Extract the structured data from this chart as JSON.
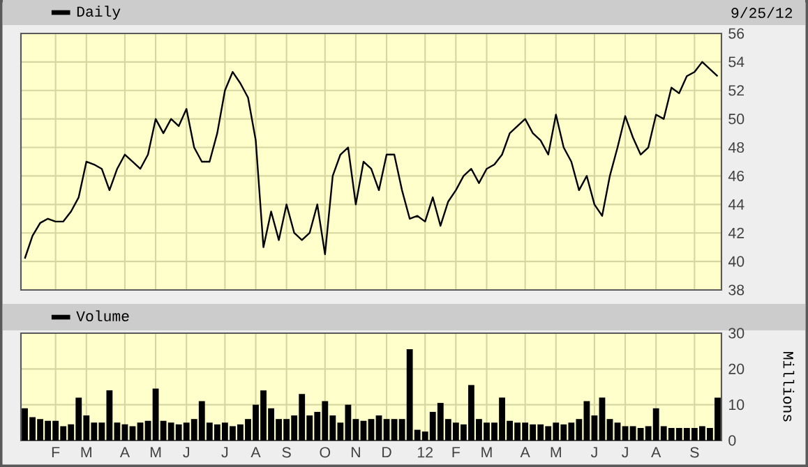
{
  "chart_data": [
    {
      "type": "line",
      "annotations": [
        "9/25/12"
      ],
      "legend": "top left",
      "grid": true,
      "tick_labels": "y",
      "categories": [
        null,
        null,
        null,
        null,
        null,
        null,
        null,
        null,
        null,
        null,
        null,
        null,
        null,
        null,
        null,
        null,
        null,
        null,
        null,
        null,
        null,
        null,
        null,
        null,
        null,
        null,
        null,
        null,
        null,
        null,
        null,
        null,
        null,
        null,
        null,
        null,
        null,
        null,
        null,
        null,
        null,
        null,
        null,
        null,
        null,
        null,
        null,
        null,
        null,
        null,
        null,
        null,
        null,
        null,
        null,
        null,
        null,
        null,
        null,
        null,
        null,
        null,
        null,
        null,
        null,
        null,
        null,
        null,
        null,
        null,
        null,
        null,
        null,
        null,
        null,
        null,
        null,
        null,
        null,
        null,
        null,
        null,
        null,
        null,
        null,
        null,
        null,
        null,
        null,
        null,
        null
      ],
      "ylim": [
        38,
        56
      ],
      "yticks": [
        38,
        40,
        42,
        44,
        46,
        48,
        50,
        52,
        54,
        56
      ],
      "series": [
        {
          "name": "Daily",
          "color": "#000000",
          "values": [
            40.2,
            41.8,
            42.7,
            43,
            42.8,
            42.8,
            43.5,
            44.5,
            47,
            46.8,
            46.5,
            45,
            46.5,
            47.5,
            47,
            46.5,
            47.5,
            50,
            49,
            50,
            49.5,
            50.7,
            48,
            47,
            47,
            49,
            52,
            53.3,
            52.5,
            51.5,
            48.5,
            41,
            43.5,
            41.5,
            44,
            42,
            41.5,
            42,
            44,
            40.5,
            46,
            47.5,
            48,
            44,
            47,
            46.5,
            45,
            47.5,
            47.5,
            45,
            43,
            43.2,
            42.8,
            44.5,
            42.5,
            44.2,
            45,
            46,
            46.5,
            45.5,
            46.5,
            46.8,
            47.5,
            49,
            49.5,
            50,
            49,
            48.5,
            47.5,
            50.3,
            48,
            47,
            45,
            46,
            44,
            43.2,
            46,
            48,
            50.2,
            48.7,
            47.5,
            48,
            50.3,
            50,
            52.2,
            51.8,
            53,
            53.3,
            54,
            53.5,
            53
          ]
        }
      ]
    },
    {
      "type": "bar",
      "legend": "top left",
      "grid": true,
      "ylabel": "Millions",
      "categories": [
        null,
        null,
        null,
        null,
        "F",
        null,
        null,
        null,
        "M",
        null,
        null,
        null,
        null,
        "A",
        null,
        null,
        null,
        "M",
        null,
        null,
        null,
        "J",
        null,
        null,
        null,
        null,
        "J",
        null,
        null,
        null,
        "A",
        null,
        null,
        null,
        "S",
        null,
        null,
        null,
        null,
        "O",
        null,
        null,
        null,
        "N",
        null,
        null,
        null,
        "D",
        null,
        null,
        null,
        null,
        "12",
        null,
        null,
        null,
        "F",
        null,
        null,
        null,
        "M",
        null,
        null,
        null,
        null,
        "A",
        null,
        null,
        null,
        "M",
        null,
        null,
        null,
        null,
        "J",
        null,
        null,
        null,
        "J",
        null,
        null,
        null,
        "A",
        null,
        null,
        null,
        null,
        "S",
        null,
        null,
        null
      ],
      "ylim": [
        0,
        30
      ],
      "yticks": [
        0,
        10,
        20,
        30
      ],
      "series": [
        {
          "name": "Volume",
          "color": "#000000",
          "values": [
            9,
            6.5,
            6,
            5.5,
            5.5,
            4,
            4.5,
            12,
            7,
            5,
            5,
            14,
            5,
            4.5,
            4,
            5,
            5.5,
            14.5,
            5.5,
            5,
            4.5,
            5,
            6,
            11,
            5,
            4.5,
            5,
            4,
            4.5,
            6,
            10,
            14,
            9,
            6,
            6,
            7,
            13,
            7,
            8,
            11,
            7,
            5,
            10,
            6,
            5.5,
            6,
            7,
            6,
            6,
            6,
            25.5,
            3,
            2.5,
            8,
            10.5,
            6,
            5,
            4.5,
            15.5,
            6,
            5,
            5,
            12,
            5.5,
            5,
            5,
            4.5,
            4.5,
            4,
            5,
            4.5,
            5,
            6,
            11,
            7,
            12,
            6,
            5,
            4,
            4,
            3.5,
            4,
            9,
            4,
            3.5,
            3.5,
            3.5,
            3.5,
            4,
            3.5,
            12
          ]
        }
      ]
    }
  ]
}
